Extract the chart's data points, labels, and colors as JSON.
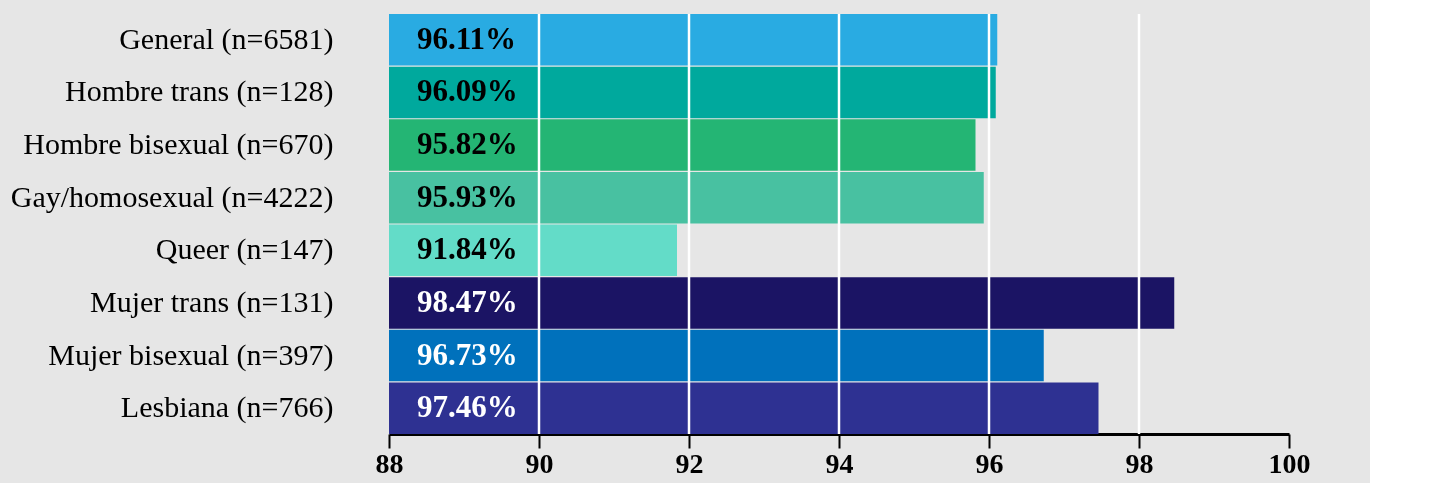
{
  "chart_data": {
    "type": "bar",
    "orientation": "horizontal",
    "categories": [
      "General (n=6581)",
      "Hombre trans (n=128)",
      "Hombre bisexual (n=670)",
      "Gay/homosexual (n=4222)",
      "Queer (n=147)",
      "Mujer trans (n=131)",
      "Mujer bisexual (n=397)",
      "Lesbiana (n=766)"
    ],
    "values": [
      96.11,
      96.09,
      95.82,
      95.93,
      91.84,
      98.47,
      96.73,
      97.46
    ],
    "colors": [
      "#29abe2",
      "#00a99d",
      "#24b574",
      "#48c1a1",
      "#63dcc8",
      "#1b1464",
      "#0071bc",
      "#2e3192"
    ],
    "value_labels": [
      "96.11%",
      "96.09%",
      "95.82%",
      "95.93%",
      "91.84%",
      "98.47%",
      "96.73%",
      "97.46%"
    ],
    "xlim": [
      88,
      100
    ],
    "xticks": [
      88,
      90,
      92,
      94,
      96,
      98,
      100
    ],
    "grid": "x"
  }
}
